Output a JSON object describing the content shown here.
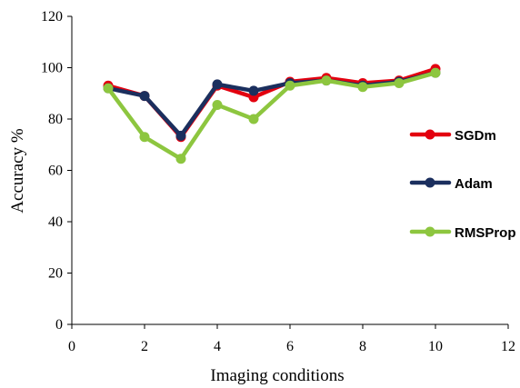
{
  "chart_data": {
    "type": "line",
    "title": "",
    "xlabel": "Imaging conditions",
    "ylabel": "Accuracy %",
    "xlim": [
      0,
      12
    ],
    "ylim": [
      0,
      120
    ],
    "xticks": [
      0,
      2,
      4,
      6,
      8,
      10,
      12
    ],
    "yticks": [
      0,
      20,
      40,
      60,
      80,
      100,
      120
    ],
    "grid": false,
    "legend_position": "right",
    "x": [
      1,
      2,
      3,
      4,
      5,
      6,
      7,
      8,
      9,
      10
    ],
    "series": [
      {
        "name": "SGDm",
        "color": "#e3000f",
        "values": [
          93,
          89,
          73,
          93,
          88.5,
          94.5,
          96,
          94,
          95,
          99.5
        ]
      },
      {
        "name": "Adam",
        "color": "#1b2f5e",
        "values": [
          92,
          89,
          73.5,
          93.5,
          91,
          94,
          95,
          93,
          94.5,
          98
        ]
      },
      {
        "name": "RMSProp",
        "color": "#8dc63f",
        "values": [
          92,
          73,
          64.5,
          85.5,
          80,
          93,
          95,
          92.5,
          94,
          98
        ]
      }
    ]
  }
}
